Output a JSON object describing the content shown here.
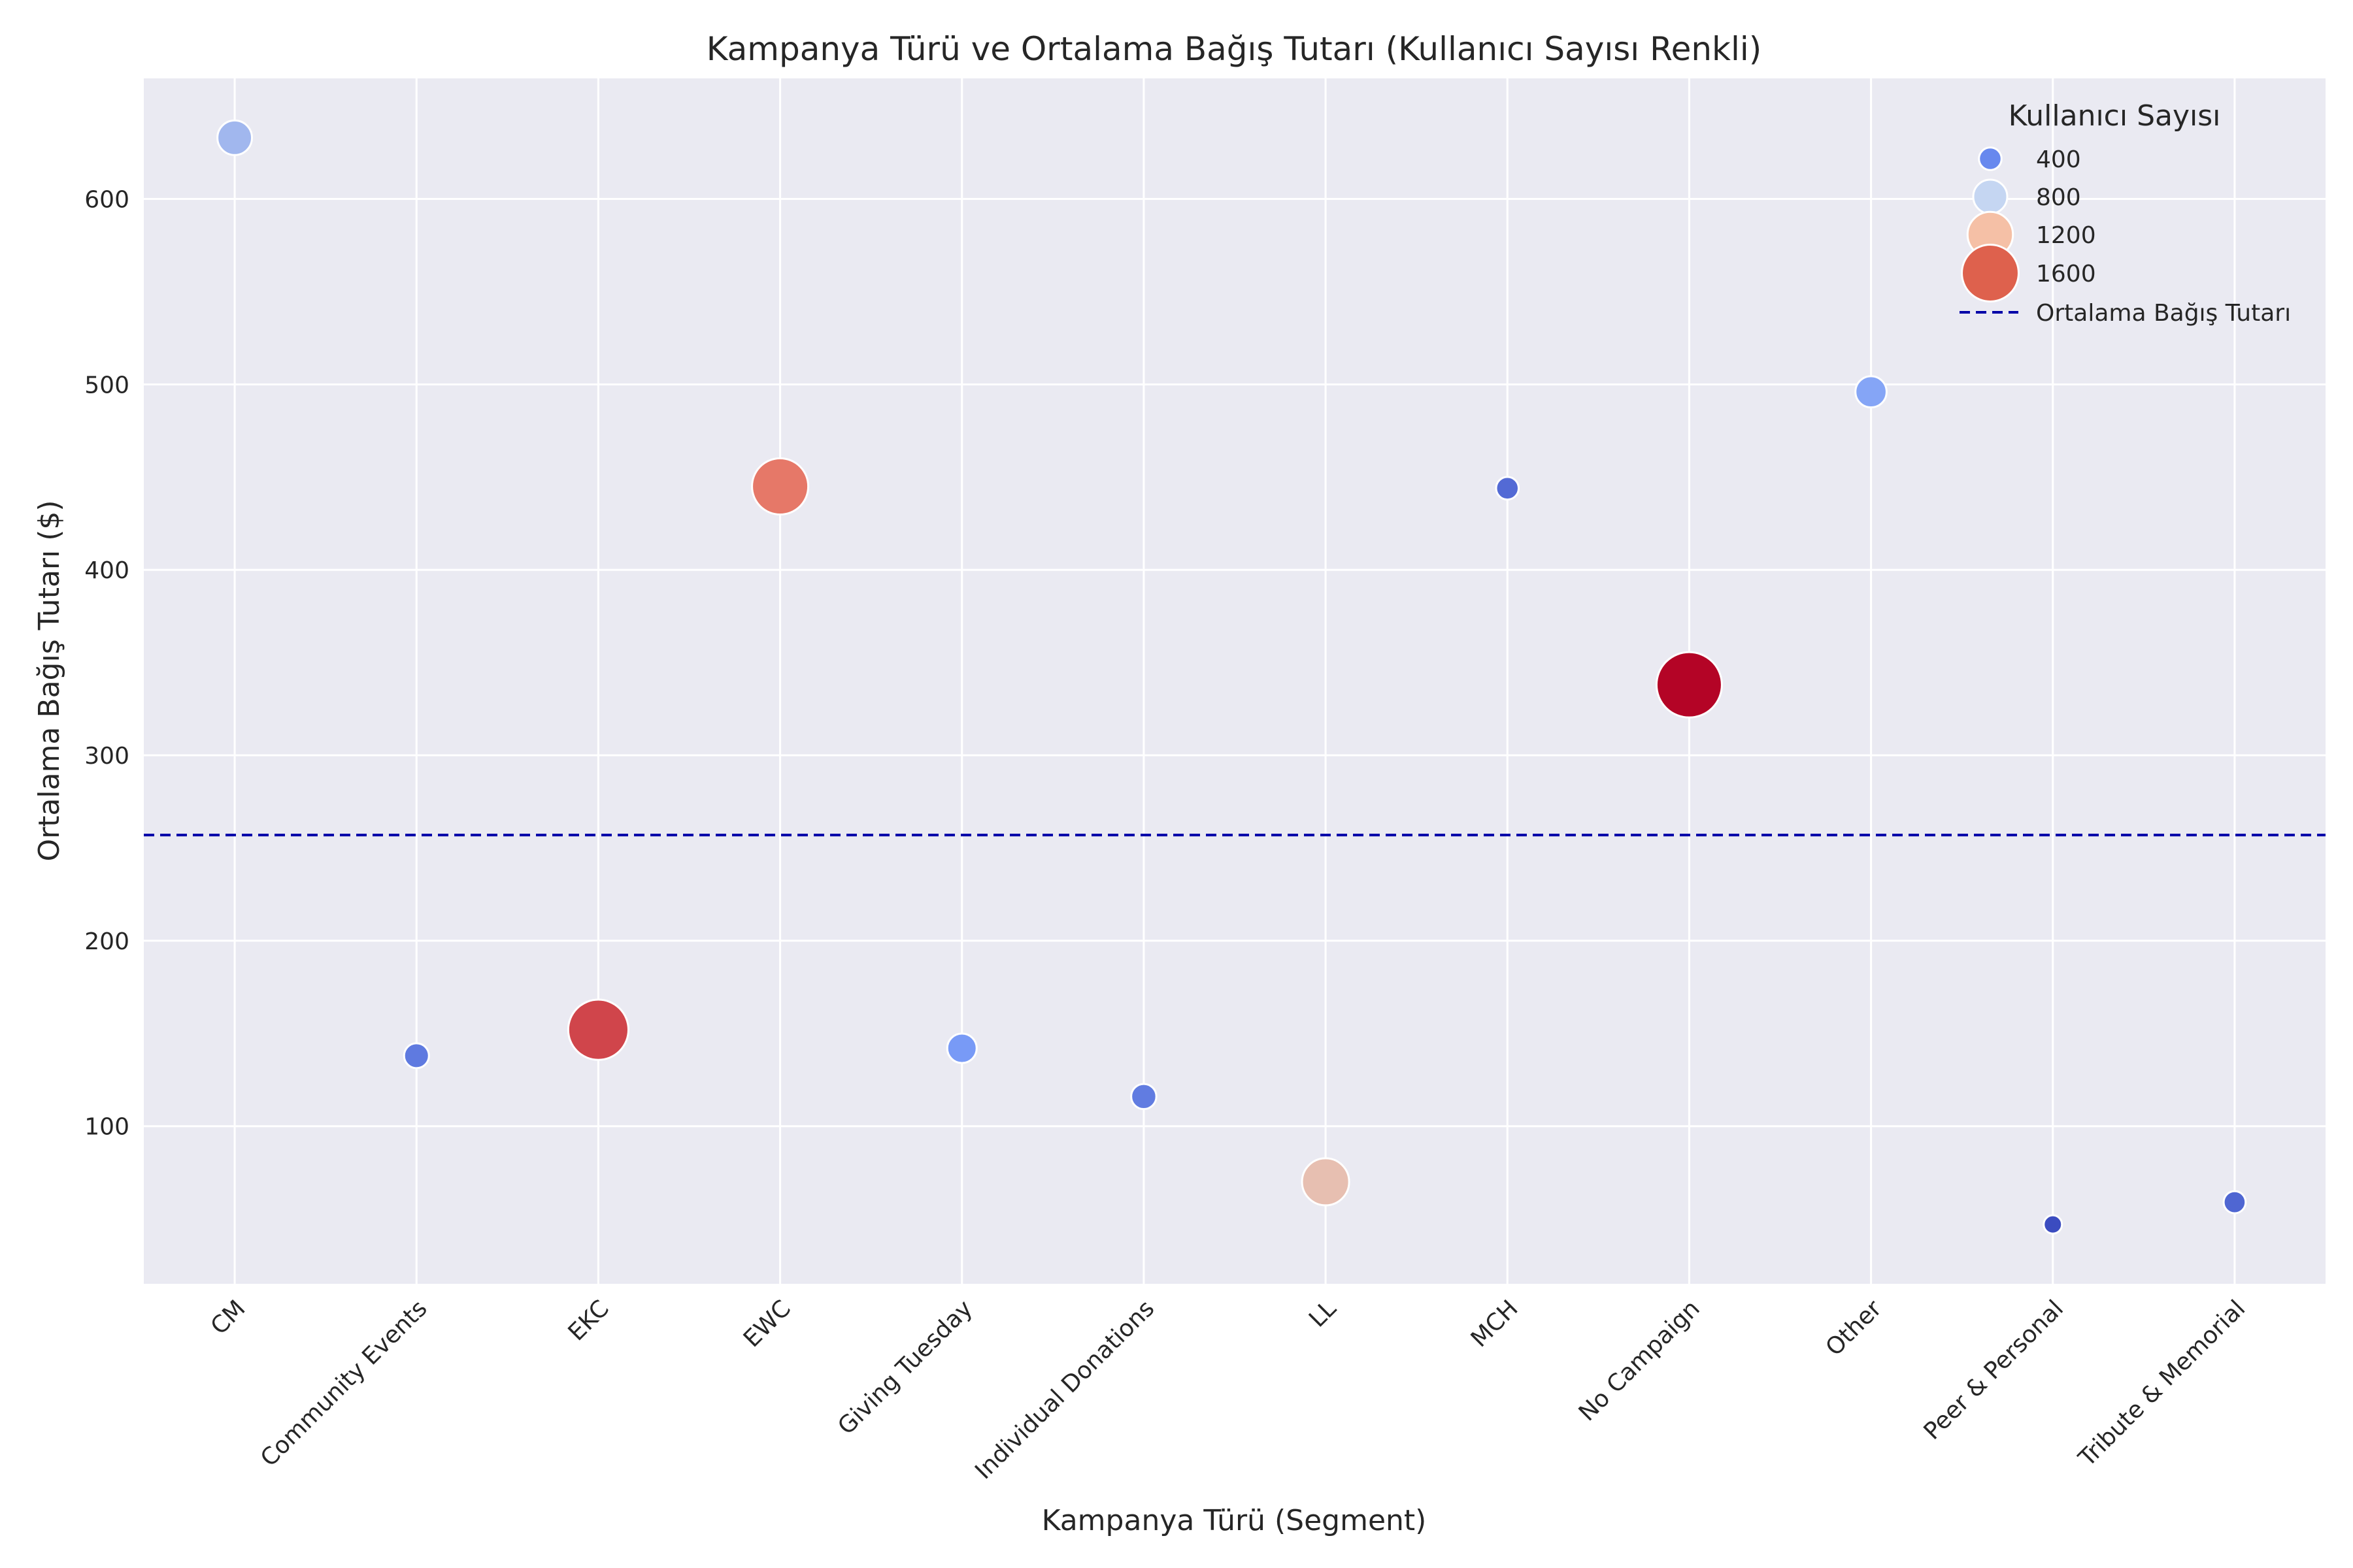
{
  "chart_data": {
    "type": "scatter",
    "title": "Kampanya Türü ve Ortalama Bağış Tutarı (Kullanıcı Sayısı Renkli)",
    "xlabel": "Kampanya Türü (Segment)",
    "ylabel": "Ortalama Bağış Tutarı ($)",
    "categories": [
      "CM",
      "Community Events",
      "EKC",
      "EWC",
      "Giving Tuesday",
      "Individual Donations",
      "LL",
      "MCH",
      "No Campaign",
      "Other",
      "Peer & Personal",
      "Tribute & Memorial"
    ],
    "values": [
      633,
      138,
      152,
      445,
      142,
      116,
      70,
      444,
      338,
      496,
      47,
      59
    ],
    "user_counts": [
      820,
      480,
      1720,
      1580,
      640,
      490,
      1260,
      400,
      1900,
      700,
      250,
      380
    ],
    "ylim": [
      15,
      665
    ],
    "yticks": [
      100,
      200,
      300,
      400,
      500,
      600
    ],
    "grid": true,
    "reference_line": {
      "value": 257,
      "label": "Ortalama Bağış Tutarı",
      "color": "#0000a8",
      "style": "dashed"
    },
    "legend": {
      "title": "Kullanıcı Sayısı",
      "placement": "top-right",
      "entries": [
        {
          "label": "400",
          "value": 400,
          "color": "#6788ee"
        },
        {
          "label": "800",
          "value": 800,
          "color": "#c5d6f2"
        },
        {
          "label": "1200",
          "value": 1200,
          "color": "#f5c0a6"
        },
        {
          "label": "1600",
          "value": 1600,
          "color": "#de614d"
        }
      ]
    },
    "colormap": "coolwarm",
    "background_color": "#eaeaf2",
    "grid_color": "#ffffff"
  }
}
